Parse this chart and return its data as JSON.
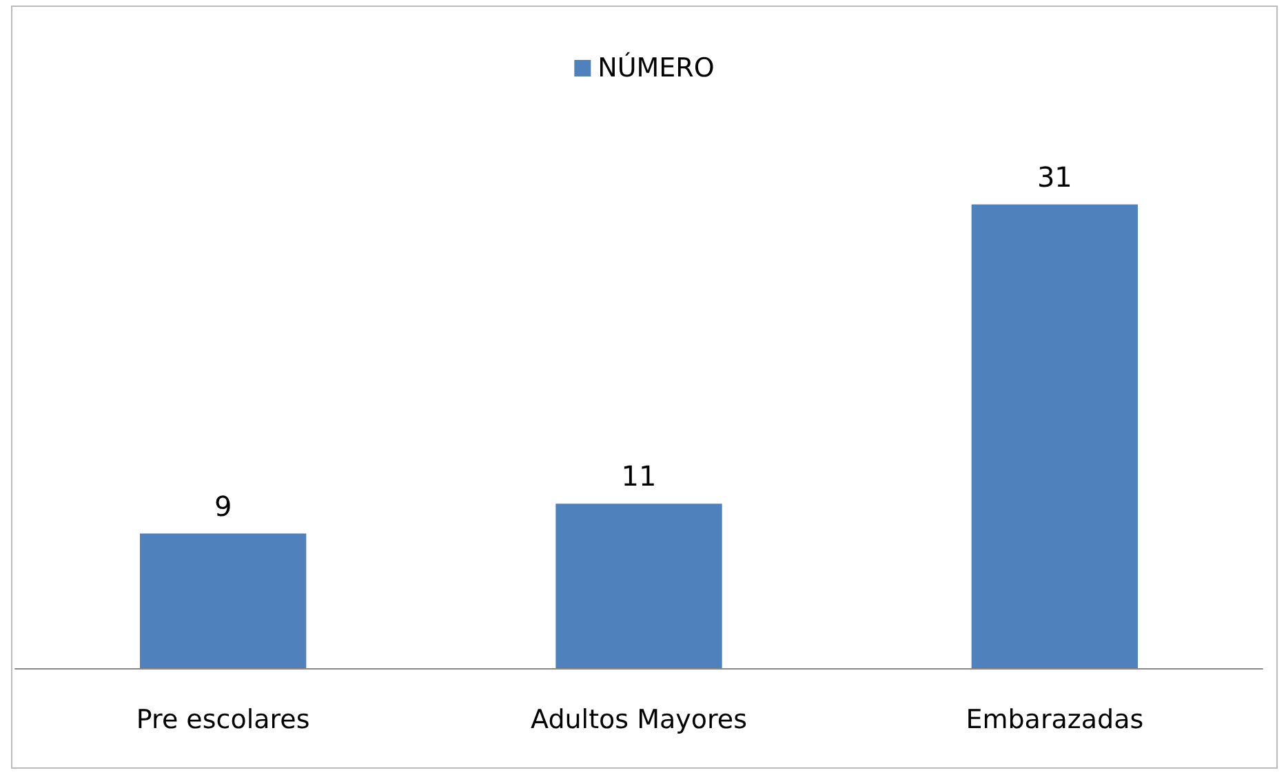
{
  "chart_data": {
    "type": "bar",
    "categories": [
      "Pre escolares",
      "Adultos Mayores",
      "Embarazadas"
    ],
    "series": [
      {
        "name": "NÚMERO",
        "color": "#4f81bd",
        "values": [
          9,
          11,
          31
        ]
      }
    ],
    "data_labels": true,
    "legend": "top"
  }
}
